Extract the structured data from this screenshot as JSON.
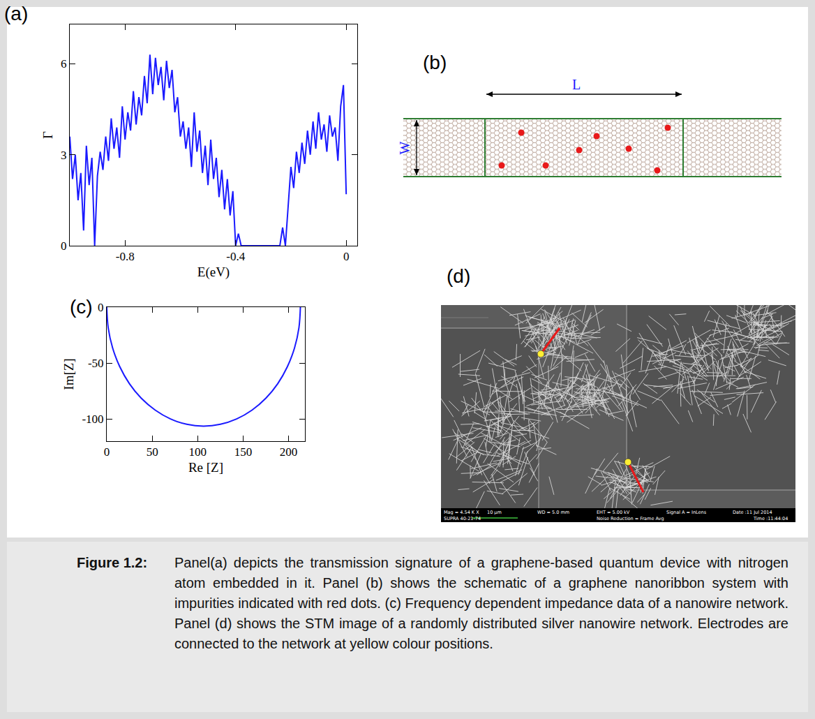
{
  "chart_data": [
    {
      "panel_label": "(a)",
      "type": "line",
      "color": "#1a1aff",
      "grid": false,
      "x_label": "E(eV)",
      "y_label": "Γ",
      "x": [
        -1,
        -0.99,
        -0.98,
        -0.97,
        -0.96,
        -0.95,
        -0.94,
        -0.93,
        -0.92,
        -0.91,
        -0.9,
        -0.89,
        -0.88,
        -0.87,
        -0.86,
        -0.85,
        -0.84,
        -0.83,
        -0.82,
        -0.81,
        -0.8,
        -0.79,
        -0.78,
        -0.77,
        -0.76,
        -0.75,
        -0.74,
        -0.73,
        -0.72,
        -0.71,
        -0.7,
        -0.69,
        -0.68,
        -0.67,
        -0.66,
        -0.65,
        -0.64,
        -0.63,
        -0.62,
        -0.61,
        -0.6,
        -0.59,
        -0.58,
        -0.57,
        -0.56,
        -0.55,
        -0.54,
        -0.53,
        -0.52,
        -0.51,
        -0.5,
        -0.49,
        -0.48,
        -0.47,
        -0.46,
        -0.45,
        -0.44,
        -0.43,
        -0.42,
        -0.41,
        -0.4,
        -0.39,
        -0.38,
        -0.37,
        -0.36,
        -0.35,
        -0.34,
        -0.33,
        -0.32,
        -0.31,
        -0.3,
        -0.29,
        -0.28,
        -0.27,
        -0.26,
        -0.25,
        -0.24,
        -0.23,
        -0.22,
        -0.21,
        -0.2,
        -0.19,
        -0.18,
        -0.17,
        -0.16,
        -0.15,
        -0.14,
        -0.13,
        -0.12,
        -0.11,
        -0.1,
        -0.09,
        -0.08,
        -0.07,
        -0.06,
        -0.05,
        -0.04,
        -0.03,
        -0.02,
        -0.01,
        0
      ],
      "values": [
        3.6,
        2.2,
        3.0,
        1.5,
        2.4,
        0.5,
        3.3,
        2.0,
        2.9,
        0.0,
        2.3,
        3.1,
        2.5,
        3.6,
        2.8,
        4.2,
        3.2,
        3.9,
        2.9,
        4.6,
        3.5,
        4.4,
        3.8,
        5.1,
        4.0,
        4.9,
        4.3,
        5.6,
        4.7,
        6.3,
        5.0,
        6.2,
        5.3,
        5.9,
        4.8,
        6.1,
        5.2,
        5.8,
        4.4,
        4.9,
        3.6,
        4.1,
        3.2,
        3.9,
        2.6,
        4.4,
        3.1,
        3.8,
        2.4,
        3.3,
        2.0,
        3.5,
        2.2,
        2.9,
        1.6,
        2.5,
        1.2,
        2.2,
        1.0,
        1.8,
        0.0,
        0.4,
        0,
        0,
        0,
        0,
        0,
        0,
        0,
        0,
        0,
        0,
        0,
        0,
        0,
        0,
        0,
        0.6,
        0.0,
        1.3,
        2.6,
        1.9,
        3.1,
        2.4,
        3.4,
        2.7,
        3.8,
        3.0,
        4.1,
        3.2,
        4.4,
        3.5,
        4.0,
        3.1,
        4.3,
        3.6,
        3.9,
        2.8,
        4.6,
        5.3,
        1.7
      ],
      "xlim": [
        -1,
        0.04
      ],
      "xticks": [
        -0.8,
        -0.4,
        0
      ],
      "ylim": [
        0,
        7.3
      ],
      "yticks": [
        0,
        3,
        6
      ]
    },
    {
      "panel_label": "(c)",
      "type": "line",
      "color": "#1a1aff",
      "grid": false,
      "x_label": "Re [Z]",
      "y_label": "Im[Z]",
      "x": [
        0,
        1.6,
        6.4,
        14.3,
        24.9,
        38.0,
        53.3,
        70.1,
        88.0,
        106.5,
        125.0,
        142.9,
        159.8,
        175.0,
        188.1,
        198.7,
        206.6,
        211.4,
        213.0
      ],
      "values": [
        0,
        -18.5,
        -36.4,
        -53.3,
        -68.5,
        -81.6,
        -92.2,
        -100.1,
        -104.9,
        -106.5,
        -104.9,
        -100.1,
        -92.2,
        -81.6,
        -68.5,
        -53.3,
        -36.4,
        -18.5,
        0
      ],
      "xlim": [
        0,
        218
      ],
      "xticks": [
        0,
        50,
        100,
        150,
        200
      ],
      "ylim": [
        -120,
        0
      ],
      "yticks": [
        -100,
        -50,
        0
      ]
    }
  ],
  "diagram": {
    "panel_label": "(b)",
    "length_label": "L",
    "width_label": "W"
  },
  "image": {
    "panel_label": "(d)",
    "info_bar": [
      "Mag = 4.54 K X",
      "10 µm",
      "WD = 5.0 mm",
      "EHT = 5.00 kV",
      "Signal A = InLens",
      "Date :11 Jul 2014",
      "SUPRA 40-21-74",
      "Noise Reduction = Frame Avg",
      "Time :11:44:04"
    ]
  },
  "caption": {
    "label": "Figure 1.2:",
    "text": "Panel(a) depicts the transmission signature of a graphene-based quantum device with nitrogen atom embedded in it. Panel (b) shows the schematic of a graphene nanoribbon system with impurities indicated with red dots. (c) Frequency dependent impedance data of a nanowire network. Panel (d) shows the STM image of a randomly distributed silver nanowire network. Electrodes are connected to the network at yellow colour positions."
  }
}
